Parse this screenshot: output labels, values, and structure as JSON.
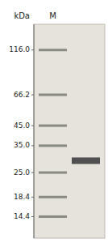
{
  "chart_data": {
    "type": "gel",
    "log": "y",
    "ylabel": "kDa",
    "categories": [
      "M",
      null
    ],
    "values": [
      [
        116.0,
        66.2,
        45.0,
        35.0,
        25.0,
        18.4,
        14.4
      ],
      [
        29.0
      ]
    ],
    "ylim": [
      11,
      160
    ],
    "yticks": [
      {
        "value": 116.0,
        "label": "116.0"
      },
      {
        "value": 66.2,
        "label": "66.2"
      },
      {
        "value": 45.0,
        "label": "45.0"
      },
      {
        "value": 35.0,
        "label": "35.0"
      },
      {
        "value": 25.0,
        "label": "25.0"
      },
      {
        "value": 18.4,
        "label": "18.4"
      },
      {
        "value": 14.4,
        "label": "14.4"
      }
    ]
  }
}
